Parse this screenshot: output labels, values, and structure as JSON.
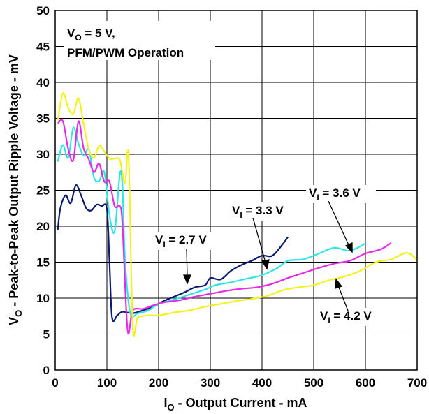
{
  "chart_data": {
    "type": "line",
    "xlabel": {
      "main": "I",
      "sub": "O",
      "rest": " - Output Current - mA"
    },
    "ylabel": {
      "main": "V",
      "sub": "O",
      "rest": " - Peak-to-Peak Output Ripple Voltage - mV"
    },
    "xlim": [
      0,
      700
    ],
    "ylim": [
      0,
      50
    ],
    "x_ticks": [
      "0",
      "100",
      "200",
      "300",
      "400",
      "500",
      "600",
      "700"
    ],
    "y_ticks": [
      "0",
      "5",
      "10",
      "15",
      "20",
      "25",
      "30",
      "35",
      "40",
      "45",
      "50"
    ],
    "grid": true,
    "condition": {
      "line1": {
        "main": "V",
        "sub": "O",
        "rest": " = 5 V,"
      },
      "line2": "PFM/PWM Operation"
    },
    "series": [
      {
        "name": "2.7 V",
        "label": {
          "main": "V",
          "sub": "I",
          "rest": " = 2.7 V"
        },
        "color": "#0a1a70",
        "x": [
          5,
          10,
          20,
          30,
          40,
          50,
          60,
          70,
          80,
          90,
          100,
          105,
          110,
          120,
          130,
          150,
          170,
          190,
          210,
          230,
          250,
          270,
          290,
          300,
          320,
          340,
          360,
          380,
          400,
          420,
          440,
          450
        ],
        "y": [
          19.5,
          22.5,
          24.3,
          23.2,
          25.7,
          24.3,
          22.5,
          22.2,
          23,
          22.8,
          22.4,
          15,
          7.3,
          7.6,
          8.1,
          7.9,
          8.3,
          8.8,
          9.6,
          10.2,
          10.8,
          11.5,
          11.8,
          12.8,
          12.6,
          13.8,
          14.6,
          15.2,
          15.9,
          15.9,
          17.5,
          18.5
        ]
      },
      {
        "name": "3.3 V",
        "label": {
          "main": "V",
          "sub": "I",
          "rest": " = 3.3 V"
        },
        "color": "#2ee6e6",
        "x": [
          5,
          15,
          25,
          35,
          45,
          55,
          65,
          75,
          85,
          95,
          105,
          115,
          125,
          130,
          135,
          145,
          160,
          180,
          200,
          230,
          260,
          290,
          310,
          340,
          370,
          400,
          430,
          450,
          480,
          510,
          540,
          570,
          600
        ],
        "y": [
          29,
          31.3,
          29.5,
          33.7,
          31.5,
          29.8,
          30.7,
          26.8,
          26.3,
          27.5,
          21.5,
          19.3,
          27.2,
          25.7,
          15.5,
          8,
          7.9,
          8.3,
          9.2,
          9.8,
          10.5,
          11.2,
          11.8,
          12.2,
          12.7,
          13.2,
          14.2,
          15.2,
          15.4,
          16.2,
          17,
          16.6,
          17.6
        ]
      },
      {
        "name": "3.6 V",
        "label": {
          "main": "V",
          "sub": "I",
          "rest": " = 3.6 V"
        },
        "color": "#e82ae8",
        "x": [
          5,
          15,
          25,
          35,
          45,
          55,
          65,
          75,
          85,
          95,
          105,
          115,
          125,
          130,
          140,
          150,
          170,
          190,
          210,
          240,
          270,
          300,
          330,
          360,
          390,
          420,
          450,
          480,
          510,
          540,
          570,
          600,
          630,
          650
        ],
        "y": [
          34.3,
          34.6,
          30.8,
          29.2,
          34.6,
          30.8,
          29.3,
          27.5,
          28.7,
          26.2,
          26.2,
          22.8,
          22.8,
          20.3,
          5.6,
          8.3,
          8.5,
          9,
          9.4,
          9.7,
          10.2,
          10.6,
          11,
          11.3,
          11.5,
          12,
          12.8,
          13.5,
          14.2,
          14.8,
          15.2,
          16.2,
          16.8,
          17.7
        ]
      },
      {
        "name": "4.2 V",
        "label": {
          "main": "V",
          "sub": "I",
          "rest": " = 4.2 V"
        },
        "color": "#f2f21e",
        "x": [
          5,
          15,
          25,
          35,
          45,
          55,
          65,
          75,
          85,
          95,
          105,
          115,
          125,
          135,
          142,
          150,
          160,
          180,
          200,
          230,
          260,
          290,
          320,
          350,
          380,
          410,
          440,
          470,
          500,
          530,
          560,
          590,
          620,
          650,
          680,
          700
        ],
        "y": [
          34.7,
          38.5,
          36.5,
          35.6,
          37.8,
          34.2,
          30.7,
          29.5,
          31.2,
          30.4,
          29.4,
          29.4,
          29.2,
          26,
          29.7,
          6.2,
          7.3,
          7.6,
          7.6,
          8,
          8.3,
          8.8,
          9.2,
          9.6,
          9.9,
          10.3,
          11.1,
          11.5,
          11.8,
          12.5,
          13,
          13.8,
          15,
          15.4,
          16.3,
          15.3
        ]
      }
    ]
  }
}
